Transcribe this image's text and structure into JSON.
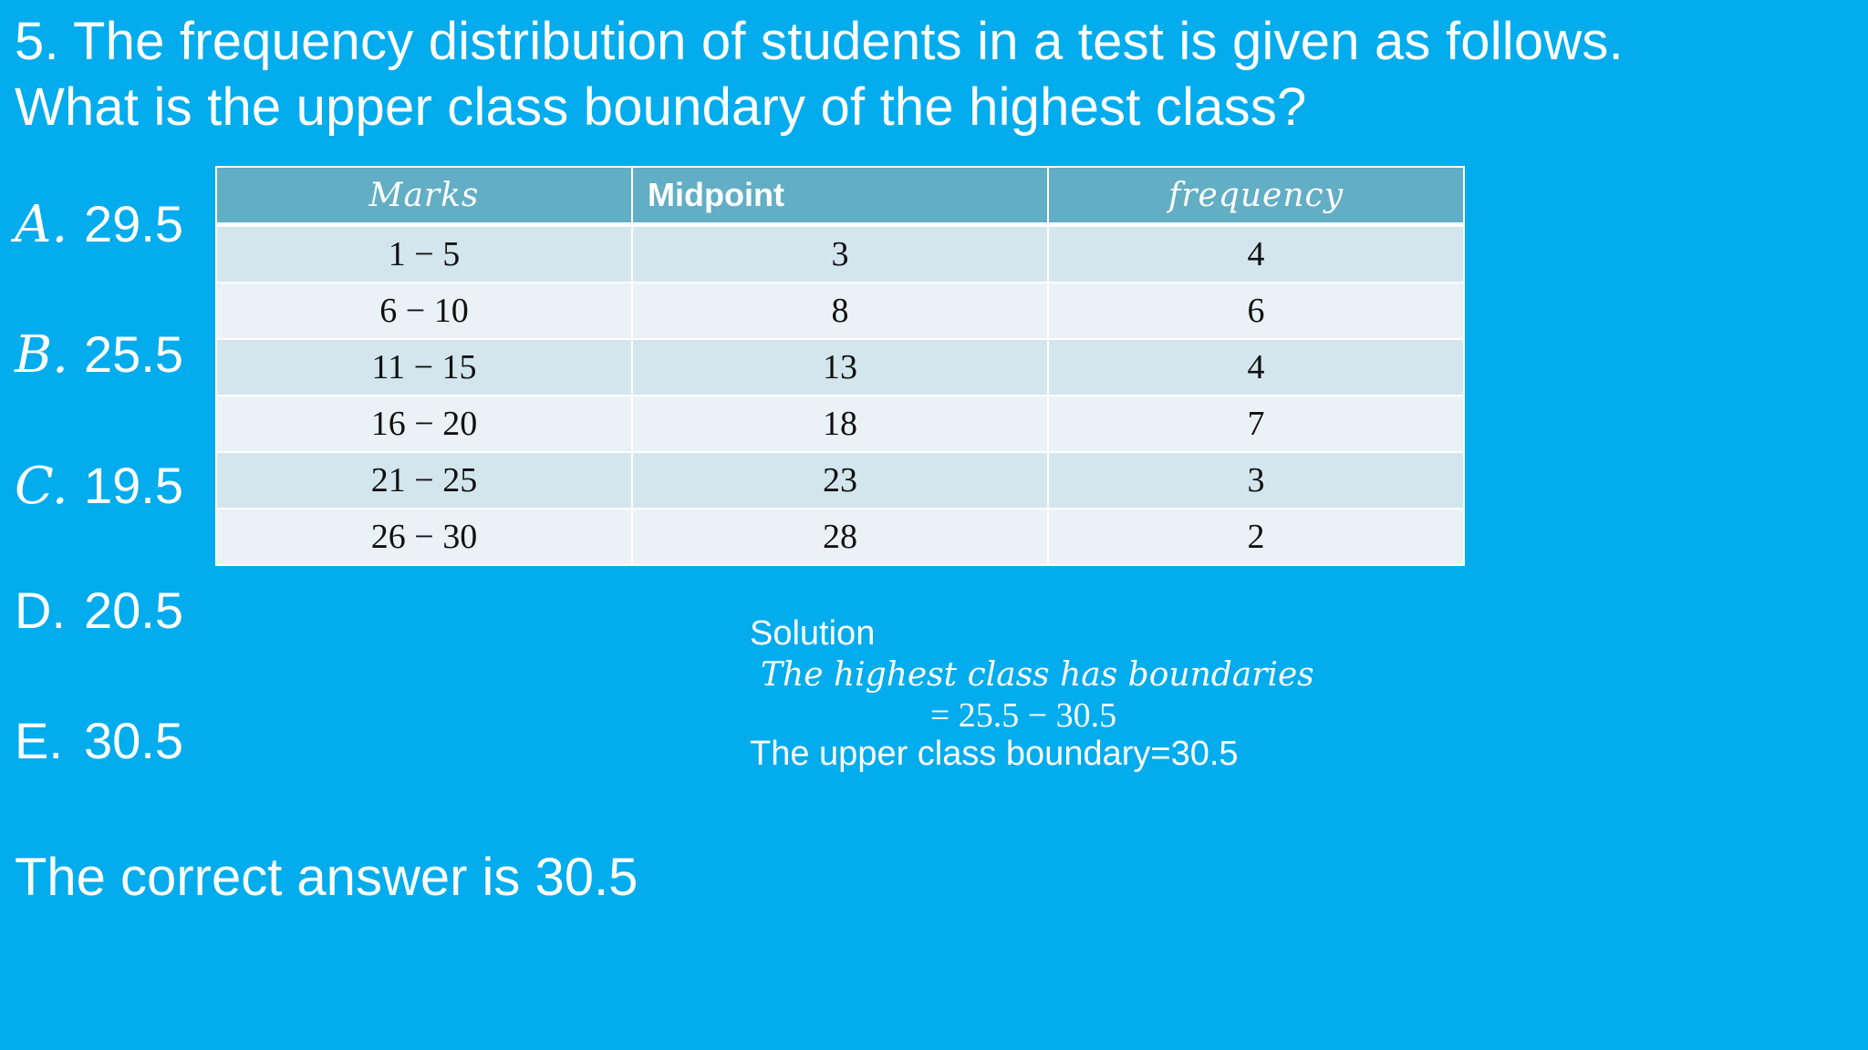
{
  "question": {
    "line1": "5. The frequency distribution of students in a test is given as follows.",
    "line2": "What is the upper class boundary of the highest class?"
  },
  "options": [
    {
      "letter": "A.",
      "value": "29.5"
    },
    {
      "letter": "B.",
      "value": "25.5"
    },
    {
      "letter": "C.",
      "value": "19.5"
    },
    {
      "letter": "D.",
      "value": "20.5"
    },
    {
      "letter": "E.",
      "value": "30.5"
    }
  ],
  "table": {
    "headers": [
      "Marks",
      "Midpoint",
      "frequency"
    ],
    "rows": [
      [
        "1 − 5",
        "3",
        "4"
      ],
      [
        "6 − 10",
        "8",
        "6"
      ],
      [
        "11 − 15",
        "13",
        "4"
      ],
      [
        "16 − 20",
        "18",
        "7"
      ],
      [
        "21 − 25",
        "23",
        "3"
      ],
      [
        "26 − 30",
        "28",
        "2"
      ]
    ]
  },
  "solution": {
    "heading": "Solution",
    "line1": "The highest class has boundaries",
    "line2": "= 25.5 − 30.5",
    "line3": "The upper class boundary=30.5"
  },
  "answer": "The correct answer is 30.5",
  "colors": {
    "background": "#02aced",
    "header_row": "#62aec4",
    "row_odd": "#d3e6ed",
    "row_even": "#eaf2f6",
    "text": "#ffffff"
  }
}
